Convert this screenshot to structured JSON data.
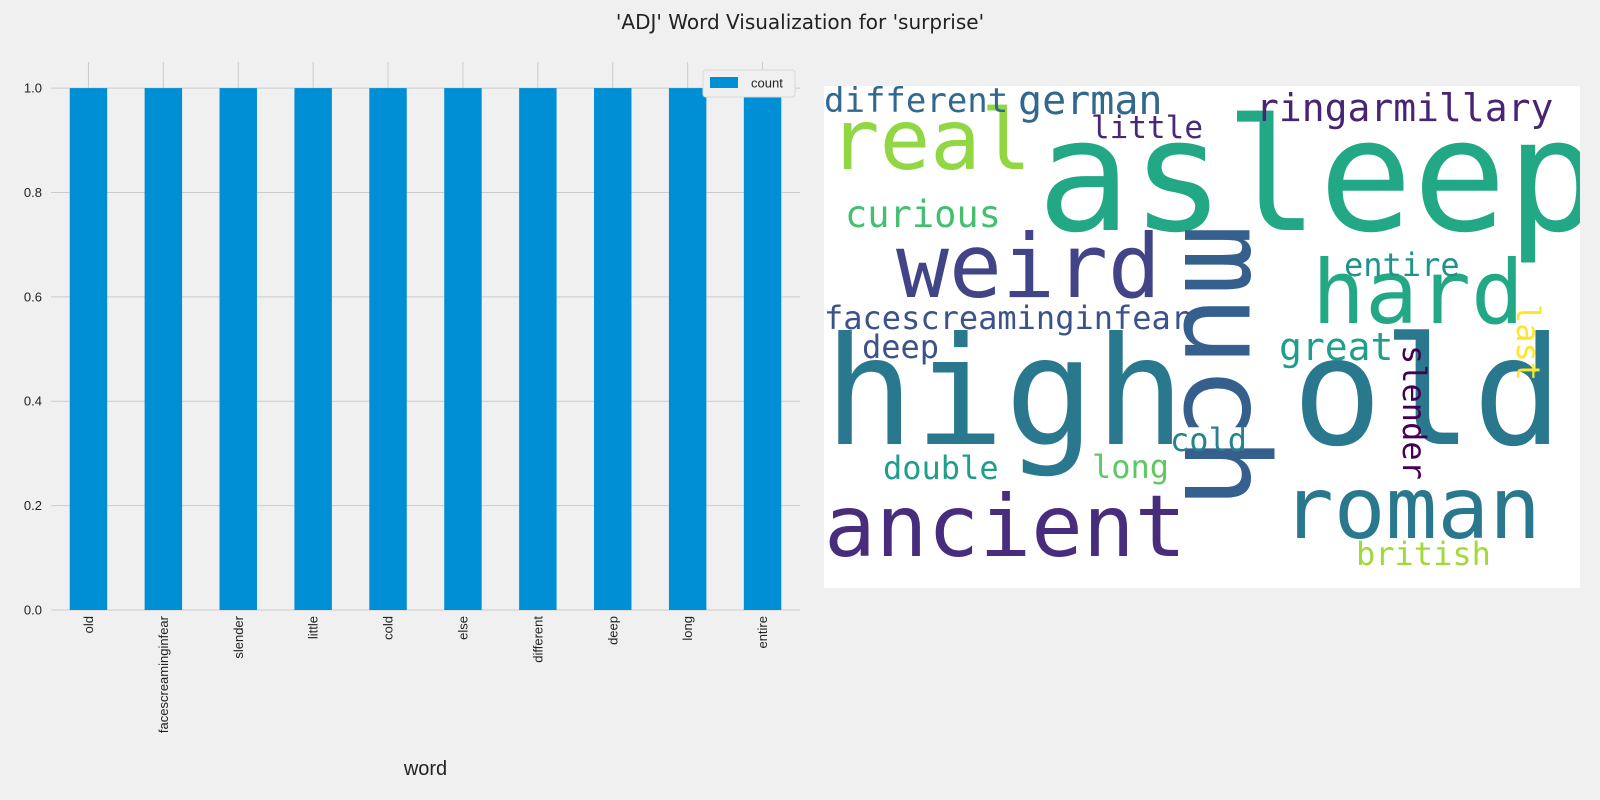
{
  "figure": {
    "title": "'ADJ' Word Visualization for 'surprise'"
  },
  "chart_data": [
    {
      "type": "bar",
      "title": "",
      "xlabel": "word",
      "ylabel": "",
      "categories": [
        "old",
        "facescreaminginfear",
        "slender",
        "little",
        "cold",
        "else",
        "different",
        "deep",
        "long",
        "entire"
      ],
      "series": [
        {
          "name": "count",
          "values": [
            1,
            1,
            1,
            1,
            1,
            1,
            1,
            1,
            1,
            1
          ],
          "color": "#008fd5"
        }
      ],
      "ylim": [
        0,
        1.05
      ],
      "yticks": [
        0.0,
        0.2,
        0.4,
        0.6,
        0.8,
        1.0
      ],
      "ytick_labels": [
        "0.0",
        "0.2",
        "0.4",
        "0.6",
        "0.8",
        "1.0"
      ],
      "grid": true,
      "legend": "top-right"
    },
    {
      "type": "wordcloud",
      "title": "",
      "colormap": "viridis",
      "words": [
        {
          "text": "asleep",
          "color": "#22a884"
        },
        {
          "text": "much",
          "color": "#355f8d"
        },
        {
          "text": "high",
          "color": "#2a788e"
        },
        {
          "text": "old",
          "color": "#2a788e"
        },
        {
          "text": "real",
          "color": "#90d743"
        },
        {
          "text": "weird",
          "color": "#414487"
        },
        {
          "text": "hard",
          "color": "#22a884"
        },
        {
          "text": "ancient",
          "color": "#472d7b"
        },
        {
          "text": "roman",
          "color": "#2a788e"
        },
        {
          "text": "different",
          "color": "#31688e"
        },
        {
          "text": "german",
          "color": "#31688e"
        },
        {
          "text": "ringarmillary",
          "color": "#482475"
        },
        {
          "text": "little",
          "color": "#482878"
        },
        {
          "text": "curious",
          "color": "#44bf70"
        },
        {
          "text": "entire",
          "color": "#21918c"
        },
        {
          "text": "last",
          "color": "#fde725"
        },
        {
          "text": "facescreaminginfear",
          "color": "#3b528b"
        },
        {
          "text": "deep",
          "color": "#3b528b"
        },
        {
          "text": "great",
          "color": "#1f9e89"
        },
        {
          "text": "slender",
          "color": "#440154"
        },
        {
          "text": "cold",
          "color": "#26828e"
        },
        {
          "text": "double",
          "color": "#1f9e89"
        },
        {
          "text": "long",
          "color": "#5ec962"
        },
        {
          "text": "british",
          "color": "#a0da39"
        }
      ]
    }
  ]
}
